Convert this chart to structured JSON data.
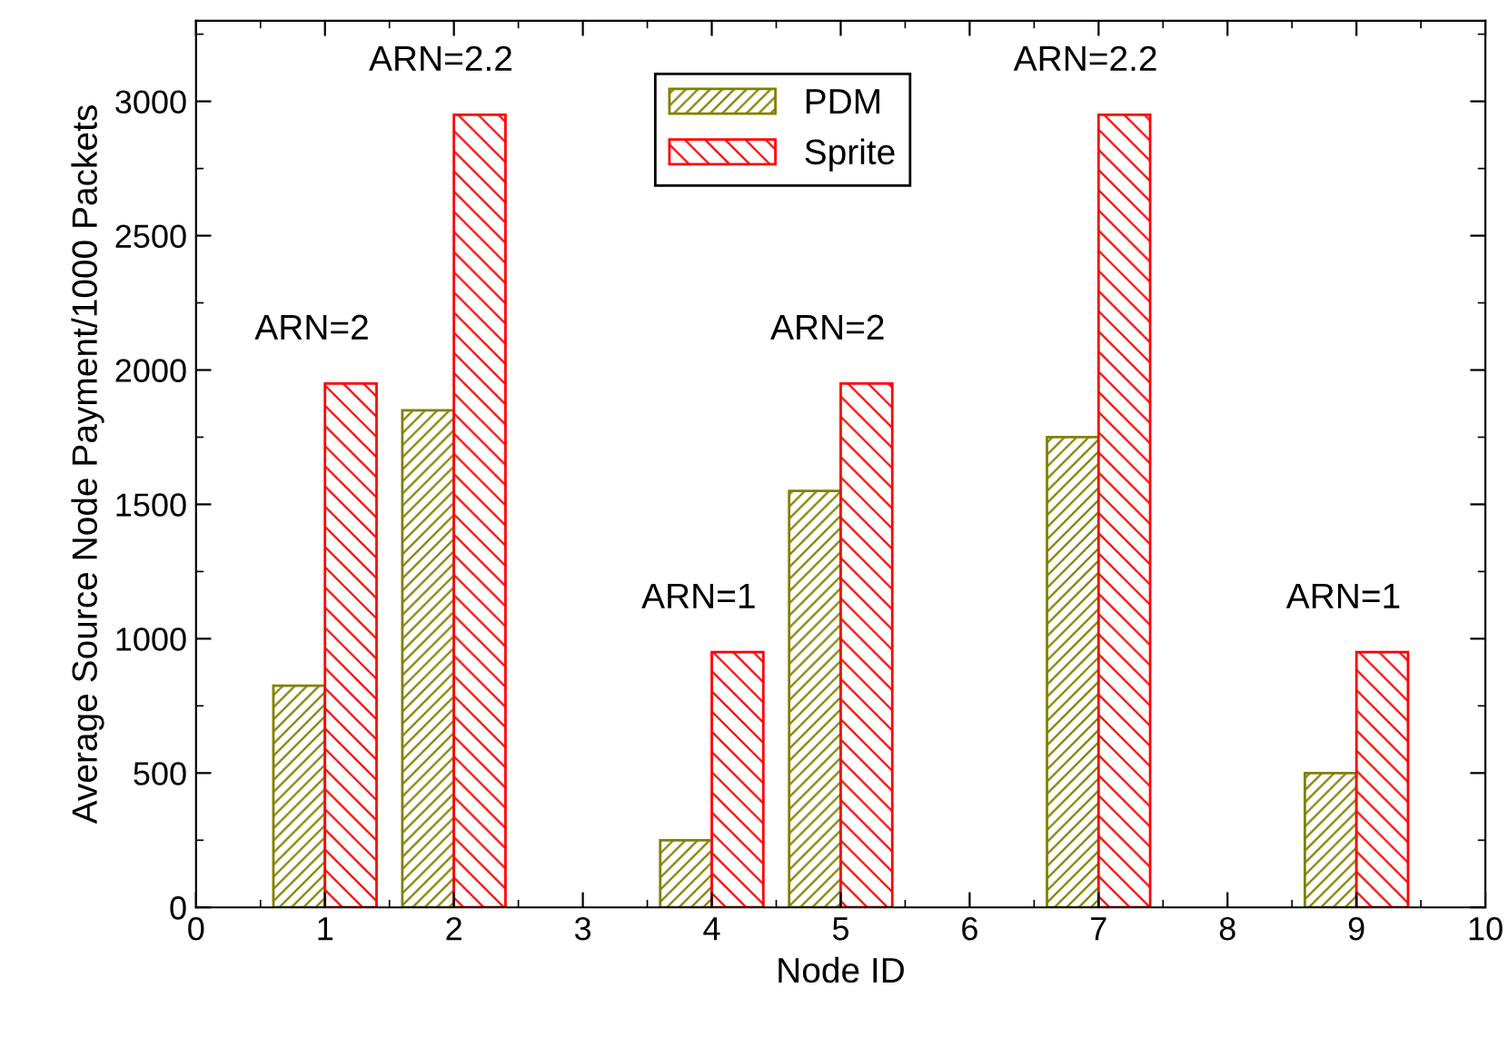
{
  "chart_data": {
    "type": "bar",
    "xlabel": "Node ID",
    "ylabel": "Average Source Node Payment/1000 Packets",
    "x": [
      1,
      2,
      4,
      5,
      7,
      9
    ],
    "series": [
      {
        "name": "PDM",
        "color": "#808000",
        "values": [
          825,
          1850,
          250,
          1550,
          1750,
          500
        ]
      },
      {
        "name": "Sprite",
        "color": "#ff0000",
        "values": [
          1950,
          2950,
          950,
          1950,
          2950,
          950
        ]
      }
    ],
    "xlim": [
      0,
      10
    ],
    "xticks": [
      0,
      1,
      2,
      3,
      4,
      5,
      6,
      7,
      8,
      9,
      10
    ],
    "ylim": [
      0,
      3300
    ],
    "yticks": [
      0,
      500,
      1000,
      1500,
      2000,
      2500,
      3000
    ],
    "annotations": [
      "ARN=2",
      "ARN=2.2",
      "ARN=1",
      "ARN=2",
      "ARN=2.2",
      "ARN=1"
    ],
    "grid": false,
    "legend": "top"
  }
}
